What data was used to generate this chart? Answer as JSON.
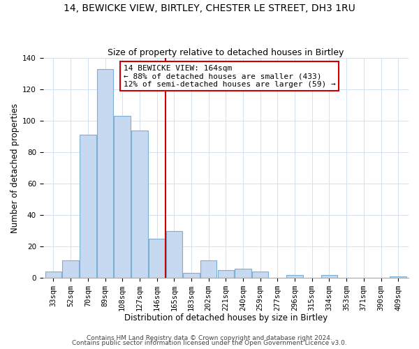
{
  "title": "14, BEWICKE VIEW, BIRTLEY, CHESTER LE STREET, DH3 1RU",
  "subtitle": "Size of property relative to detached houses in Birtley",
  "xlabel": "Distribution of detached houses by size in Birtley",
  "ylabel": "Number of detached properties",
  "bar_labels": [
    "33sqm",
    "52sqm",
    "70sqm",
    "89sqm",
    "108sqm",
    "127sqm",
    "146sqm",
    "165sqm",
    "183sqm",
    "202sqm",
    "221sqm",
    "240sqm",
    "259sqm",
    "277sqm",
    "296sqm",
    "315sqm",
    "334sqm",
    "353sqm",
    "371sqm",
    "390sqm",
    "409sqm"
  ],
  "bar_values": [
    4,
    11,
    91,
    133,
    103,
    94,
    25,
    30,
    3,
    11,
    5,
    6,
    4,
    0,
    2,
    0,
    2,
    0,
    0,
    0,
    1
  ],
  "bar_color": "#c6d9f0",
  "bar_edge_color": "#7bafd4",
  "vline_color": "#cc0000",
  "annotation_text": "14 BEWICKE VIEW: 164sqm\n← 88% of detached houses are smaller (433)\n12% of semi-detached houses are larger (59) →",
  "annotation_box_color": "#ffffff",
  "annotation_box_edge": "#cc0000",
  "ylim": [
    0,
    140
  ],
  "yticks": [
    0,
    20,
    40,
    60,
    80,
    100,
    120,
    140
  ],
  "footer1": "Contains HM Land Registry data © Crown copyright and database right 2024.",
  "footer2": "Contains public sector information licensed under the Open Government Licence v3.0.",
  "title_fontsize": 10,
  "subtitle_fontsize": 9,
  "axis_label_fontsize": 8.5,
  "tick_fontsize": 7.5,
  "annotation_fontsize": 8,
  "footer_fontsize": 6.5
}
